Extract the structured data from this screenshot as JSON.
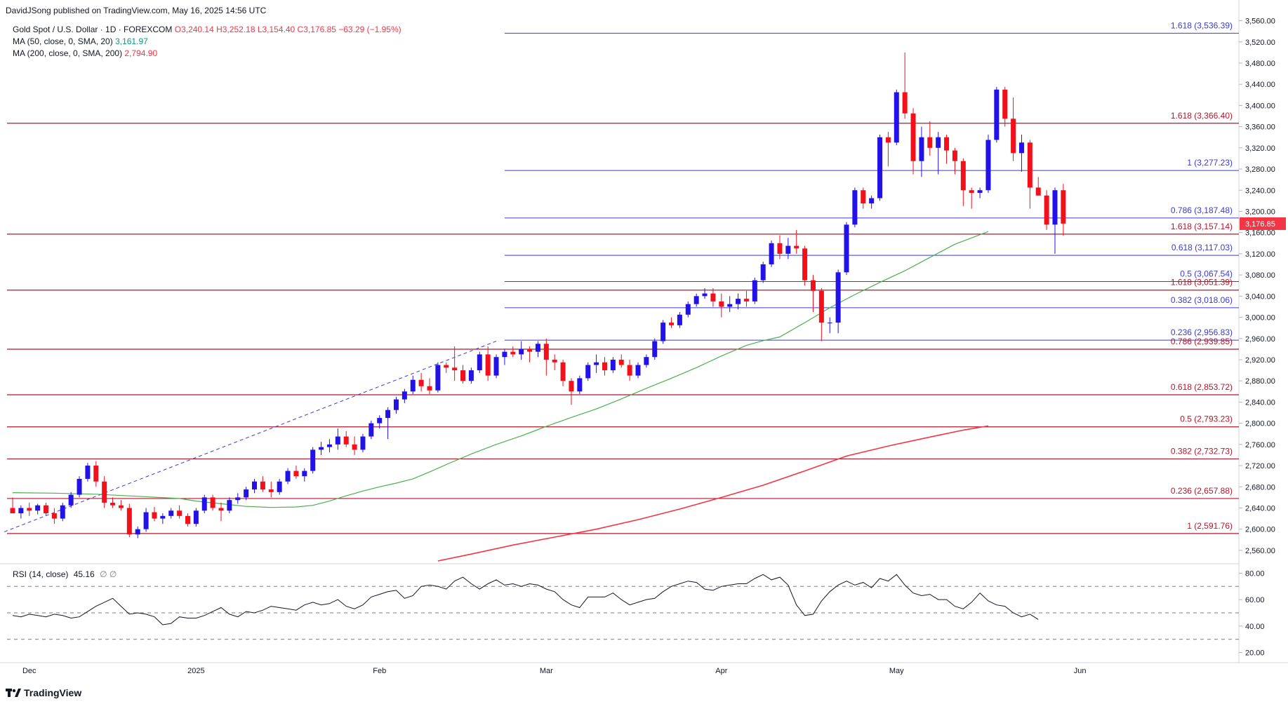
{
  "publisher": "DavidJSong published on TradingView.com, May 16, 2025 14:56 UTC",
  "legend": {
    "symbol": "Gold Spot / U.S. Dollar · 1D · FOREXCOM",
    "ohlc": "O3,240.14  H3,252.18  L3,154.40  C3,176.85  −63.29 (−1.95%)",
    "ma50_label": "MA (50, close, 0, SMA, 20)",
    "ma50_value": "3,161.97",
    "ma200_label": "MA (200, close, 0, SMA, 200)",
    "ma200_value": "2,794.90"
  },
  "rsi_legend": {
    "label": "RSI (14, close)",
    "value": "45.16",
    "extra": "∅ ∅"
  },
  "brand": "TradingView",
  "colors": {
    "up": "#2212e8",
    "down": "#f2101b",
    "ma50": "#4caf50",
    "ma200": "#f23645",
    "fib_blue": "#3b3bcc",
    "fib_red": "#b2182b",
    "rsi": "#131722"
  },
  "chart_data": {
    "type": "candlestick",
    "title": "Gold Spot / U.S. Dollar · 1D · FOREXCOM",
    "ylim": [
      2540,
      3570
    ],
    "y_ticks": [
      "2,560.00",
      "2,600.00",
      "2,640.00",
      "2,680.00",
      "2,720.00",
      "2,760.00",
      "2,800.00",
      "2,840.00",
      "2,880.00",
      "2,920.00",
      "2,960.00",
      "3,000.00",
      "3,040.00",
      "3,080.00",
      "3,120.00",
      "3,160.00",
      "3,200.00",
      "3,240.00",
      "3,280.00",
      "3,320.00",
      "3,360.00",
      "3,400.00",
      "3,440.00",
      "3,480.00",
      "3,520.00",
      "3,560.00"
    ],
    "y_tick_values": [
      2560,
      2600,
      2640,
      2680,
      2720,
      2760,
      2800,
      2840,
      2880,
      2920,
      2960,
      3000,
      3040,
      3080,
      3120,
      3160,
      3200,
      3240,
      3280,
      3320,
      3360,
      3400,
      3440,
      3480,
      3520,
      3560
    ],
    "x_labels": [
      {
        "text": "Dec",
        "index": 2
      },
      {
        "text": "2025",
        "index": 22
      },
      {
        "text": "Feb",
        "index": 44
      },
      {
        "text": "Mar",
        "index": 64
      },
      {
        "text": "Apr",
        "index": 85
      },
      {
        "text": "May",
        "index": 106
      },
      {
        "text": "Jun",
        "index": 128
      }
    ],
    "last_price": "3,176.85",
    "last_value": 3176.85,
    "candles": [
      [
        2640,
        2660,
        2630,
        2630
      ],
      [
        2630,
        2645,
        2620,
        2640
      ],
      [
        2640,
        2650,
        2625,
        2635
      ],
      [
        2635,
        2648,
        2628,
        2645
      ],
      [
        2645,
        2650,
        2625,
        2630
      ],
      [
        2630,
        2640,
        2610,
        2620
      ],
      [
        2620,
        2650,
        2615,
        2645
      ],
      [
        2645,
        2670,
        2640,
        2665
      ],
      [
        2665,
        2700,
        2660,
        2695
      ],
      [
        2695,
        2725,
        2690,
        2720
      ],
      [
        2720,
        2728,
        2680,
        2690
      ],
      [
        2690,
        2700,
        2640,
        2650
      ],
      [
        2650,
        2660,
        2640,
        2645
      ],
      [
        2645,
        2655,
        2635,
        2640
      ],
      [
        2640,
        2648,
        2585,
        2590
      ],
      [
        2590,
        2605,
        2583,
        2600
      ],
      [
        2600,
        2640,
        2595,
        2632
      ],
      [
        2632,
        2642,
        2615,
        2620
      ],
      [
        2620,
        2630,
        2610,
        2625
      ],
      [
        2625,
        2640,
        2620,
        2635
      ],
      [
        2635,
        2645,
        2620,
        2625
      ],
      [
        2625,
        2630,
        2605,
        2610
      ],
      [
        2610,
        2640,
        2605,
        2635
      ],
      [
        2635,
        2665,
        2630,
        2660
      ],
      [
        2660,
        2665,
        2635,
        2640
      ],
      [
        2640,
        2650,
        2615,
        2635
      ],
      [
        2635,
        2660,
        2630,
        2655
      ],
      [
        2655,
        2668,
        2648,
        2660
      ],
      [
        2660,
        2680,
        2655,
        2675
      ],
      [
        2675,
        2695,
        2668,
        2690
      ],
      [
        2690,
        2700,
        2670,
        2675
      ],
      [
        2675,
        2690,
        2660,
        2670
      ],
      [
        2670,
        2695,
        2665,
        2690
      ],
      [
        2690,
        2715,
        2685,
        2710
      ],
      [
        2710,
        2720,
        2695,
        2700
      ],
      [
        2700,
        2715,
        2690,
        2710
      ],
      [
        2710,
        2755,
        2705,
        2750
      ],
      [
        2750,
        2765,
        2740,
        2755
      ],
      [
        2755,
        2770,
        2745,
        2760
      ],
      [
        2760,
        2790,
        2750,
        2775
      ],
      [
        2775,
        2785,
        2755,
        2760
      ],
      [
        2760,
        2775,
        2740,
        2750
      ],
      [
        2750,
        2780,
        2745,
        2775
      ],
      [
        2775,
        2805,
        2770,
        2800
      ],
      [
        2800,
        2815,
        2790,
        2810
      ],
      [
        2810,
        2830,
        2770,
        2825
      ],
      [
        2825,
        2850,
        2818,
        2845
      ],
      [
        2845,
        2865,
        2838,
        2860
      ],
      [
        2860,
        2890,
        2855,
        2882
      ],
      [
        2882,
        2895,
        2860,
        2870
      ],
      [
        2870,
        2885,
        2855,
        2862
      ],
      [
        2862,
        2915,
        2858,
        2910
      ],
      [
        2910,
        2915,
        2895,
        2905
      ],
      [
        2905,
        2945,
        2880,
        2900
      ],
      [
        2900,
        2910,
        2875,
        2880
      ],
      [
        2880,
        2905,
        2875,
        2900
      ],
      [
        2900,
        2935,
        2895,
        2930
      ],
      [
        2930,
        2945,
        2880,
        2890
      ],
      [
        2890,
        2930,
        2885,
        2925
      ],
      [
        2925,
        2940,
        2910,
        2935
      ],
      [
        2935,
        2945,
        2925,
        2930
      ],
      [
        2930,
        2955,
        2920,
        2940
      ],
      [
        2940,
        2945,
        2915,
        2935
      ],
      [
        2935,
        2955,
        2925,
        2950
      ],
      [
        2950,
        2960,
        2890,
        2920
      ],
      [
        2920,
        2930,
        2900,
        2915
      ],
      [
        2915,
        2920,
        2870,
        2880
      ],
      [
        2880,
        2885,
        2835,
        2860
      ],
      [
        2860,
        2890,
        2855,
        2885
      ],
      [
        2885,
        2915,
        2880,
        2910
      ],
      [
        2910,
        2930,
        2895,
        2915
      ],
      [
        2915,
        2925,
        2890,
        2900
      ],
      [
        2900,
        2925,
        2895,
        2920
      ],
      [
        2920,
        2930,
        2905,
        2910
      ],
      [
        2910,
        2920,
        2880,
        2890
      ],
      [
        2890,
        2915,
        2885,
        2910
      ],
      [
        2910,
        2930,
        2905,
        2925
      ],
      [
        2925,
        2960,
        2920,
        2955
      ],
      [
        2955,
        2995,
        2950,
        2990
      ],
      [
        2990,
        3000,
        2980,
        2985
      ],
      [
        2985,
        3010,
        2980,
        3005
      ],
      [
        3005,
        3030,
        3000,
        3025
      ],
      [
        3025,
        3045,
        3020,
        3040
      ],
      [
        3040,
        3055,
        3035,
        3045
      ],
      [
        3045,
        3055,
        3020,
        3030
      ],
      [
        3030,
        3045,
        3000,
        3020
      ],
      [
        3020,
        3040,
        3010,
        3025
      ],
      [
        3025,
        3045,
        3015,
        3035
      ],
      [
        3035,
        3050,
        3020,
        3030
      ],
      [
        3030,
        3075,
        3025,
        3070
      ],
      [
        3070,
        3105,
        3065,
        3100
      ],
      [
        3100,
        3145,
        3095,
        3140
      ],
      [
        3140,
        3155,
        3110,
        3120
      ],
      [
        3120,
        3150,
        3110,
        3135
      ],
      [
        3135,
        3165,
        3120,
        3130
      ],
      [
        3130,
        3135,
        3060,
        3070
      ],
      [
        3070,
        3080,
        3010,
        3050
      ],
      [
        3050,
        3055,
        2955,
        2990
      ],
      [
        2990,
        3000,
        2970,
        2990
      ],
      [
        2990,
        3090,
        2970,
        3085
      ],
      [
        3085,
        3180,
        3080,
        3175
      ],
      [
        3175,
        3245,
        3170,
        3240
      ],
      [
        3240,
        3245,
        3205,
        3215
      ],
      [
        3215,
        3230,
        3205,
        3225
      ],
      [
        3225,
        3345,
        3220,
        3340
      ],
      [
        3340,
        3350,
        3285,
        3330
      ],
      [
        3330,
        3430,
        3325,
        3425
      ],
      [
        3425,
        3500,
        3375,
        3385
      ],
      [
        3385,
        3395,
        3270,
        3295
      ],
      [
        3295,
        3360,
        3265,
        3340
      ],
      [
        3340,
        3370,
        3305,
        3320
      ],
      [
        3320,
        3350,
        3270,
        3340
      ],
      [
        3340,
        3345,
        3290,
        3315
      ],
      [
        3315,
        3320,
        3270,
        3295
      ],
      [
        3295,
        3300,
        3210,
        3240
      ],
      [
        3240,
        3245,
        3205,
        3235
      ],
      [
        3235,
        3245,
        3225,
        3240
      ],
      [
        3240,
        3345,
        3235,
        3335
      ],
      [
        3335,
        3435,
        3330,
        3430
      ],
      [
        3430,
        3435,
        3360,
        3375
      ],
      [
        3375,
        3415,
        3295,
        3310
      ],
      [
        3310,
        3345,
        3275,
        3330
      ],
      [
        3330,
        3335,
        3205,
        3245
      ],
      [
        3245,
        3265,
        3230,
        3230
      ],
      [
        3230,
        3240,
        3165,
        3175
      ],
      [
        3175,
        3245,
        3120,
        3240
      ],
      [
        3240,
        3252,
        3154,
        3177
      ]
    ],
    "series": [
      {
        "name": "MA (50, close, 0, SMA, 20)",
        "color": "#4caf50",
        "points": [
          [
            0,
            2669
          ],
          [
            5,
            2668
          ],
          [
            10,
            2666
          ],
          [
            15,
            2662
          ],
          [
            20,
            2658
          ],
          [
            22,
            2653
          ],
          [
            25,
            2648
          ],
          [
            28,
            2643
          ],
          [
            31,
            2641
          ],
          [
            34,
            2642
          ],
          [
            36,
            2645
          ],
          [
            38,
            2653
          ],
          [
            40,
            2663
          ],
          [
            42,
            2672
          ],
          [
            44,
            2680
          ],
          [
            46,
            2687
          ],
          [
            48,
            2695
          ],
          [
            50,
            2708
          ],
          [
            52,
            2722
          ],
          [
            55,
            2742
          ],
          [
            58,
            2760
          ],
          [
            61,
            2776
          ],
          [
            64,
            2794
          ],
          [
            67,
            2811
          ],
          [
            70,
            2827
          ],
          [
            73,
            2846
          ],
          [
            76,
            2866
          ],
          [
            79,
            2885
          ],
          [
            82,
            2905
          ],
          [
            85,
            2927
          ],
          [
            88,
            2947
          ],
          [
            90,
            2956
          ],
          [
            92,
            2963
          ],
          [
            95,
            2990
          ],
          [
            98,
            3018
          ],
          [
            101,
            3043
          ],
          [
            104,
            3066
          ],
          [
            107,
            3088
          ],
          [
            110,
            3113
          ],
          [
            113,
            3138
          ],
          [
            117,
            3162
          ]
        ]
      },
      {
        "name": "MA (200, close, 0, SMA, 200)",
        "color": "#f23645",
        "points": [
          [
            51,
            2540
          ],
          [
            55,
            2553
          ],
          [
            60,
            2570
          ],
          [
            65,
            2585
          ],
          [
            70,
            2600
          ],
          [
            75,
            2618
          ],
          [
            80,
            2638
          ],
          [
            85,
            2660
          ],
          [
            90,
            2683
          ],
          [
            95,
            2710
          ],
          [
            100,
            2738
          ],
          [
            105,
            2757
          ],
          [
            110,
            2774
          ],
          [
            114,
            2787
          ],
          [
            117,
            2795
          ]
        ]
      }
    ],
    "fib_levels": [
      {
        "label": "1.618 (3,536.39)",
        "value": 3536.39,
        "color": "#3b3bcc",
        "x_start": 59
      },
      {
        "label": "1.618 (3,366.40)",
        "value": 3366.4,
        "color": "#b2182b",
        "x_start": 0
      },
      {
        "label": "1 (3,277.23)",
        "value": 3277.23,
        "color": "#3b3bcc",
        "x_start": 59
      },
      {
        "label": "0.786 (3,187.48)",
        "value": 3187.48,
        "color": "#3b3bcc",
        "x_start": 59
      },
      {
        "label": "1.618 (3,157.14)",
        "value": 3157.14,
        "color": "#b2182b",
        "x_start": 0
      },
      {
        "label": "0.618 (3,117.03)",
        "value": 3117.03,
        "color": "#3b3bcc",
        "x_start": 59
      },
      {
        "label": "0.5 (3,067.54)",
        "value": 3067.54,
        "color": "#3b3bcc",
        "x_start": 59
      },
      {
        "label": "1.618 (3,051.39)",
        "value": 3051.39,
        "color": "#b2182b",
        "x_start": 0
      },
      {
        "label": "0.382 (3,018.06)",
        "value": 3018.06,
        "color": "#3b3bcc",
        "x_start": 59
      },
      {
        "label": "0.236 (2,956.83)",
        "value": 2956.83,
        "color": "#3b3bcc",
        "x_start": 59
      },
      {
        "label": "0.786 (2,939.85)",
        "value": 2939.85,
        "color": "#b2182b",
        "x_start": 0
      },
      {
        "label": "0.618 (2,853.72)",
        "value": 2853.72,
        "color": "#b2182b",
        "x_start": 0
      },
      {
        "label": "0.5 (2,793.23)",
        "value": 2793.23,
        "color": "#b2182b",
        "x_start": 0
      },
      {
        "label": "0.382 (2,732.73)",
        "value": 2732.73,
        "color": "#b2182b",
        "x_start": 0
      },
      {
        "label": "0.236 (2,657.88)",
        "value": 2657.88,
        "color": "#b2182b",
        "x_start": 0
      },
      {
        "label": "1 (2,591.76)",
        "value": 2591.76,
        "color": "#b2182b",
        "x_start": 0
      }
    ],
    "trendline": {
      "from": [
        -1,
        2595
      ],
      "to": [
        58,
        2955
      ],
      "color": "#3b3bcc",
      "style": "dashed"
    },
    "rsi": {
      "label": "RSI (14, close)",
      "ylim": [
        15,
        85
      ],
      "y_ticks": [
        "20.00",
        "40.00",
        "60.00",
        "80.00"
      ],
      "y_tick_values": [
        20,
        40,
        60,
        80
      ],
      "levels": [
        30,
        50,
        70
      ],
      "values": [
        48,
        47,
        49,
        48,
        47,
        49,
        48,
        46,
        47,
        51,
        55,
        58,
        61,
        55,
        49,
        50,
        49,
        47,
        41,
        42,
        47,
        46,
        46,
        48,
        51,
        54,
        49,
        47,
        51,
        50,
        52,
        55,
        54,
        53,
        52,
        56,
        58,
        56,
        57,
        60,
        55,
        53,
        56,
        62,
        64,
        66,
        67,
        61,
        63,
        70,
        71,
        70,
        68,
        74,
        77,
        72,
        68,
        72,
        75,
        71,
        72,
        70,
        72,
        71,
        68,
        66,
        60,
        56,
        54,
        62,
        62,
        62,
        65,
        60,
        56,
        58,
        60,
        61,
        66,
        70,
        72,
        74,
        73,
        68,
        67,
        70,
        71,
        72,
        72,
        76,
        79,
        75,
        77,
        71,
        56,
        48,
        49,
        59,
        66,
        71,
        74,
        71,
        73,
        69,
        76,
        74,
        79,
        71,
        65,
        63,
        64,
        60,
        60,
        55,
        53,
        58,
        65,
        59,
        56,
        55,
        50,
        47,
        49,
        45
      ]
    }
  }
}
